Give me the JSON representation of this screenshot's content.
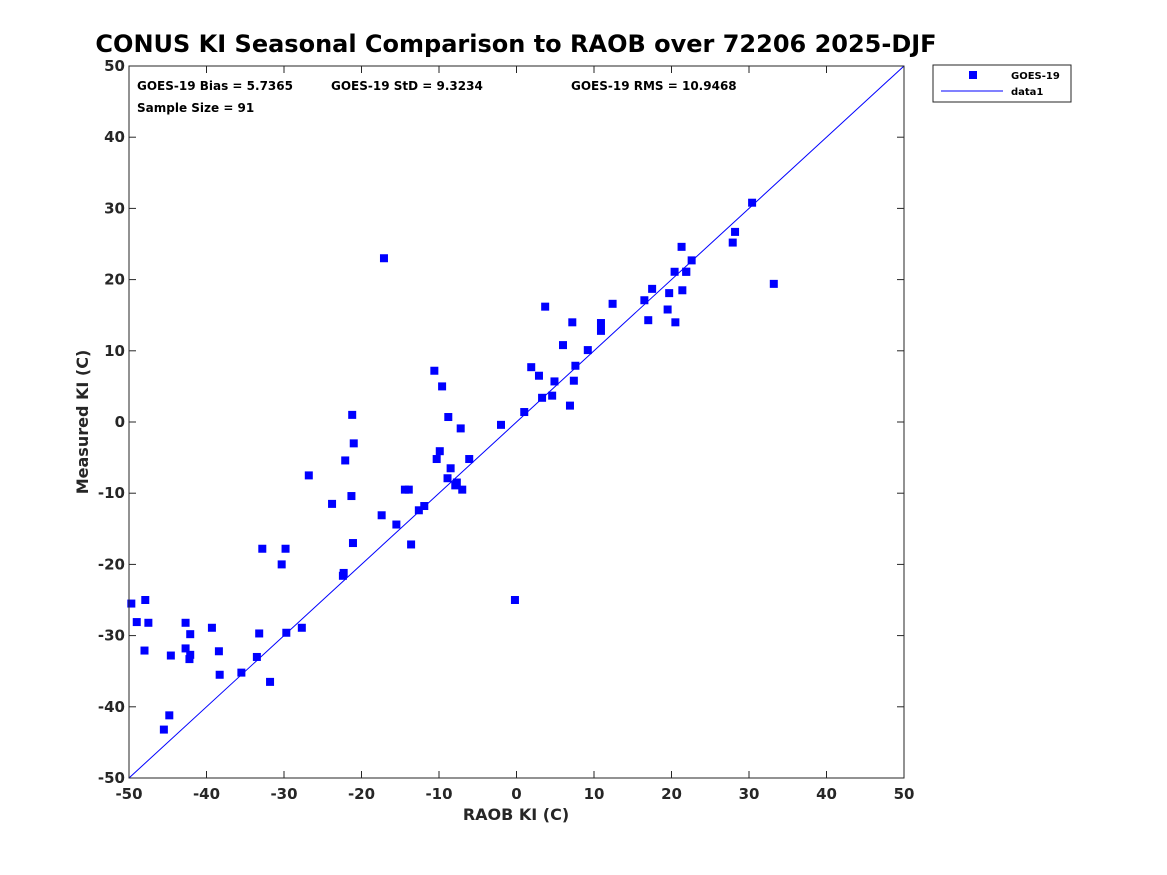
{
  "chart_data": {
    "type": "scatter",
    "title": "CONUS KI Seasonal Comparison to RAOB over 72206 2025-DJF",
    "xlabel": "RAOB KI (C)",
    "ylabel": "Measured KI (C)",
    "xlim": [
      -50,
      50
    ],
    "ylim": [
      -50,
      50
    ],
    "xticks": [
      -50,
      -40,
      -30,
      -20,
      -10,
      0,
      10,
      20,
      30,
      40,
      50
    ],
    "yticks": [
      -50,
      -40,
      -30,
      -20,
      -10,
      0,
      10,
      20,
      30,
      40,
      50
    ],
    "legend_position": "top-right",
    "annotations": {
      "bias": "GOES-19 Bias = 5.7365",
      "std": "GOES-19 StD = 9.3234",
      "rms": "GOES-19 RMS = 10.9468",
      "sample": "Sample Size = 91"
    },
    "series": [
      {
        "name": "GOES-19",
        "kind": "points",
        "color": "#0000ff",
        "x": [
          -49.7,
          -49,
          -48,
          -47.9,
          -47.5,
          -45.5,
          -44.8,
          -44.6,
          -42.7,
          -42.7,
          -42.2,
          -42.1,
          -42.1,
          -39.3,
          -38.4,
          -38.3,
          -35.5,
          -33.5,
          -33.2,
          -32.8,
          -31.8,
          -30.3,
          -29.8,
          -29.7,
          -27.7,
          -26.8,
          -23.8,
          -22.4,
          -22.3,
          -22.1,
          -21.3,
          -21.2,
          -21.1,
          -21.0,
          -17.4,
          -17.1,
          -15.5,
          -14.4,
          -13.9,
          -13.6,
          -12.6,
          -11.9,
          -10.6,
          -10.3,
          -9.9,
          -9.6,
          -8.9,
          -8.8,
          -8.5,
          -7.9,
          -7.7,
          -7.2,
          -7.0,
          -6.1,
          -2.0,
          -0.2,
          1.0,
          1.9,
          2.9,
          3.3,
          3.7,
          4.6,
          4.9,
          6.0,
          6.9,
          7.2,
          7.4,
          7.6,
          9.2,
          10.9,
          10.9,
          12.4,
          16.5,
          17.0,
          17.5,
          19.5,
          19.7,
          20.4,
          20.5,
          21.3,
          21.4,
          21.9,
          21.9,
          22.6,
          27.9,
          28.2,
          30.4,
          33.2
        ],
        "y": [
          -25.5,
          -28.1,
          -32.1,
          -25.0,
          -28.2,
          -43.2,
          -41.2,
          -32.8,
          -28.2,
          -31.8,
          -33.3,
          -32.7,
          -29.8,
          -28.9,
          -32.2,
          -35.5,
          -35.2,
          -33.0,
          -29.7,
          -17.8,
          -36.5,
          -20.0,
          -17.8,
          -29.6,
          -28.9,
          -7.5,
          -11.5,
          -21.6,
          -21.2,
          -5.4,
          -10.4,
          1.0,
          -17.0,
          -3.0,
          -13.1,
          23.0,
          -14.4,
          -9.5,
          -9.5,
          -17.2,
          -12.4,
          -11.8,
          7.2,
          -5.2,
          -4.1,
          5.0,
          -7.9,
          0.7,
          -6.5,
          -8.9,
          -8.5,
          -0.9,
          -9.5,
          -5.2,
          -0.4,
          -25.0,
          1.4,
          7.7,
          6.5,
          3.4,
          16.2,
          3.7,
          5.7,
          10.8,
          2.3,
          14.0,
          5.8,
          7.9,
          10.1,
          12.8,
          13.9,
          16.6,
          17.1,
          14.3,
          18.7,
          15.8,
          18.1,
          21.1,
          14.0,
          24.6,
          18.5,
          21.1,
          21.1,
          22.7,
          25.2,
          26.7,
          30.8,
          19.4
        ]
      },
      {
        "name": "data1",
        "kind": "line",
        "color": "#0000ff",
        "x": [
          -50,
          50
        ],
        "y": [
          -50,
          50
        ]
      }
    ]
  }
}
